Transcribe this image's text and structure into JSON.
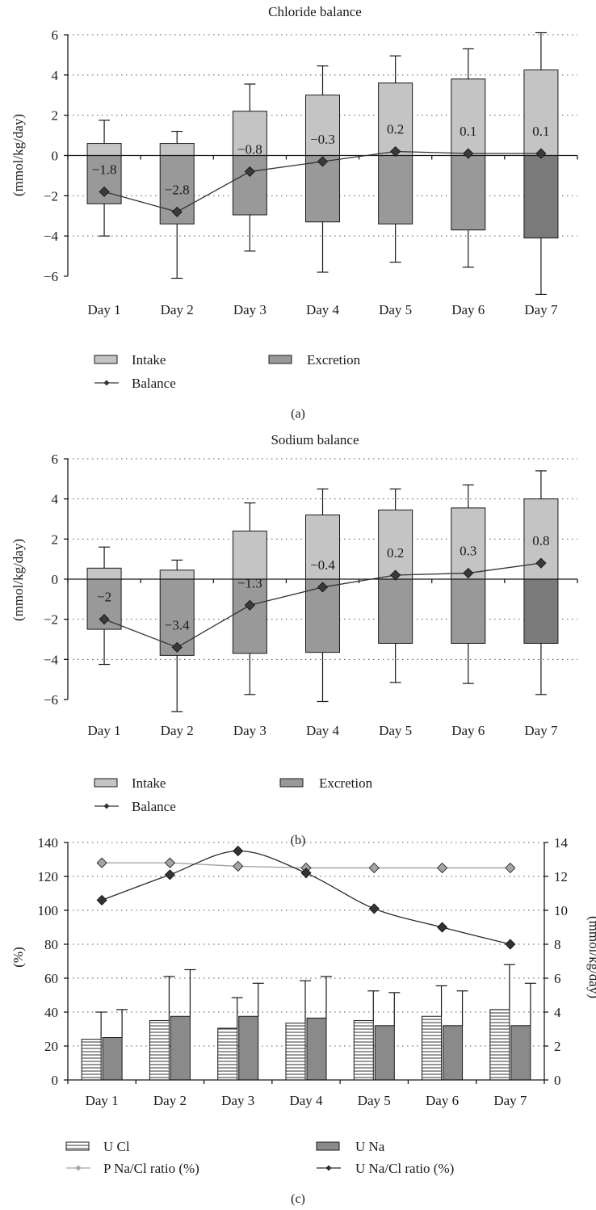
{
  "chart_data": [
    {
      "type": "bar",
      "panel_label": "(a)",
      "title": "Chloride balance",
      "ylabel": "(mmol/kg/day)",
      "ylim": [
        -6,
        6
      ],
      "yticks": [
        -6,
        -4,
        -2,
        0,
        2,
        4,
        6
      ],
      "grid": true,
      "legend_position": "bottom",
      "categories": [
        "Day 1",
        "Day 2",
        "Day 3",
        "Day 4",
        "Day 5",
        "Day 6",
        "Day 7"
      ],
      "series": [
        {
          "name": "Intake",
          "kind": "bar",
          "color": "#c4c4c4",
          "values": [
            0.6,
            0.6,
            2.2,
            3.0,
            3.6,
            3.8,
            4.25
          ],
          "error_upper": [
            1.75,
            1.2,
            3.55,
            4.45,
            4.95,
            5.3,
            6.1
          ]
        },
        {
          "name": "Excretion",
          "kind": "bar",
          "color": "#999999",
          "colors": [
            "#999999",
            "#999999",
            "#999999",
            "#999999",
            "#999999",
            "#999999",
            "#7a7a7a"
          ],
          "values": [
            -2.4,
            -3.4,
            -2.95,
            -3.3,
            -3.4,
            -3.7,
            -4.1
          ],
          "error_lower": [
            -4.0,
            -6.1,
            -4.75,
            -5.8,
            -5.3,
            -5.55,
            -6.9
          ]
        },
        {
          "name": "Balance",
          "kind": "line",
          "color": "#333333",
          "values": [
            -1.8,
            -2.8,
            -0.8,
            -0.3,
            0.2,
            0.1,
            0.1
          ],
          "labels": [
            "-1.8",
            "-2.8",
            "-0.8",
            "-0.3",
            "0.2",
            "0.1",
            "0.1"
          ]
        }
      ]
    },
    {
      "type": "bar",
      "panel_label": "(b)",
      "title": "Sodium balance",
      "ylabel": "(mmol/kg/day)",
      "ylim": [
        -6,
        6
      ],
      "yticks": [
        -6,
        -4,
        -2,
        0,
        2,
        4,
        6
      ],
      "grid": true,
      "legend_position": "bottom",
      "categories": [
        "Day 1",
        "Day 2",
        "Day 3",
        "Day 4",
        "Day 5",
        "Day 6",
        "Day 7"
      ],
      "series": [
        {
          "name": "Intake",
          "kind": "bar",
          "color": "#c4c4c4",
          "values": [
            0.55,
            0.45,
            2.4,
            3.2,
            3.45,
            3.55,
            4.0
          ],
          "error_upper": [
            1.6,
            0.95,
            3.8,
            4.5,
            4.5,
            4.7,
            5.4
          ]
        },
        {
          "name": "Excretion",
          "kind": "bar",
          "color": "#999999",
          "colors": [
            "#999999",
            "#999999",
            "#999999",
            "#999999",
            "#999999",
            "#999999",
            "#7a7a7a"
          ],
          "values": [
            -2.5,
            -3.8,
            -3.7,
            -3.65,
            -3.2,
            -3.2,
            -3.2
          ],
          "error_lower": [
            -4.25,
            -6.6,
            -5.75,
            -6.1,
            -5.15,
            -5.2,
            -5.75
          ]
        },
        {
          "name": "Balance",
          "kind": "line",
          "color": "#333333",
          "values": [
            -2.0,
            -3.4,
            -1.3,
            -0.4,
            0.2,
            0.3,
            0.8
          ],
          "labels": [
            "-2",
            "-3.4",
            "-1.3",
            "-0.4",
            "0.2",
            "0.3",
            "0.8"
          ]
        }
      ]
    },
    {
      "type": "bar",
      "panel_label": "(c)",
      "title": "",
      "ylabel": "(%)",
      "ylabel_right": "(mmol/kg/day)",
      "ylim": [
        0,
        140
      ],
      "yticks": [
        0,
        20,
        40,
        60,
        80,
        100,
        120,
        140
      ],
      "ylim_right": [
        0,
        14
      ],
      "yticks_right": [
        0,
        2,
        4,
        6,
        8,
        10,
        12,
        14
      ],
      "grid": true,
      "legend_position": "bottom",
      "categories": [
        "Day 1",
        "Day 2",
        "Day 3",
        "Day 4",
        "Day 5",
        "Day 6",
        "Day 7"
      ],
      "series": [
        {
          "name": "U Cl",
          "kind": "bar",
          "axis": "right",
          "pattern": "horizontal-stripes",
          "color": "#ffffff",
          "values": [
            2.4,
            3.5,
            3.05,
            3.35,
            3.5,
            3.75,
            4.15
          ],
          "error_upper": [
            4.0,
            6.1,
            4.85,
            5.85,
            5.25,
            5.55,
            6.8
          ]
        },
        {
          "name": "U Na",
          "kind": "bar",
          "axis": "right",
          "color": "#8a8a8a",
          "values": [
            2.5,
            3.75,
            3.75,
            3.65,
            3.2,
            3.2,
            3.2
          ],
          "error_upper": [
            4.15,
            6.5,
            5.7,
            6.1,
            5.15,
            5.25,
            5.7
          ]
        },
        {
          "name": "P Na/Cl ratio (%)",
          "kind": "line",
          "axis": "left",
          "color": "#a5a5a5",
          "values": [
            128,
            128,
            126,
            125,
            125,
            125,
            125
          ]
        },
        {
          "name": "U Na/Cl ratio (%)",
          "kind": "line",
          "axis": "left",
          "color": "#2a2a2a",
          "values": [
            106,
            121,
            135,
            122,
            101,
            90,
            80
          ]
        }
      ]
    }
  ]
}
